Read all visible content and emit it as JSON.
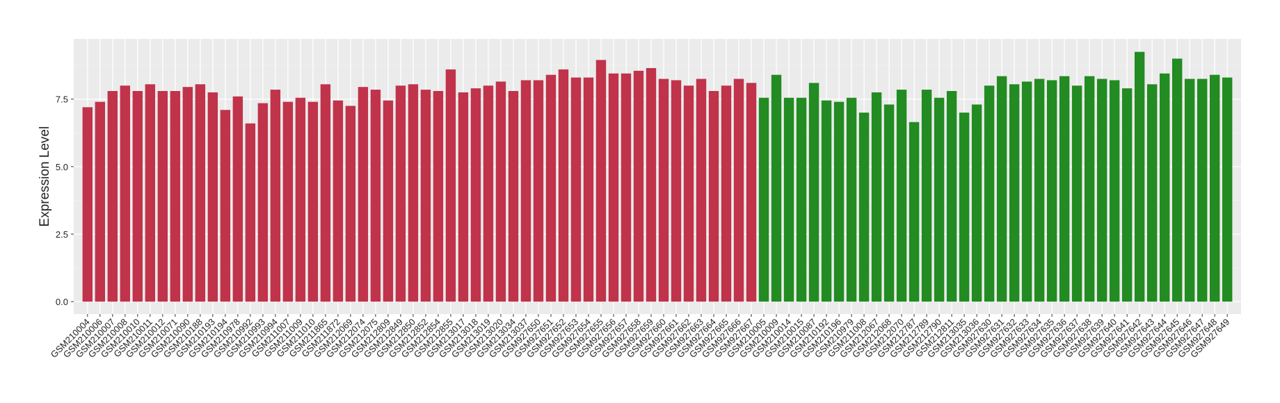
{
  "chart_data": {
    "type": "bar",
    "y_label": "Expression Level",
    "categories": [
      "GSM210004",
      "GSM210006",
      "GSM210007",
      "GSM210008",
      "GSM210010",
      "GSM210011",
      "GSM210012",
      "GSM210071",
      "GSM210090",
      "GSM210188",
      "GSM210193",
      "GSM210194",
      "GSM210978",
      "GSM210992",
      "GSM210993",
      "GSM210994",
      "GSM211007",
      "GSM211009",
      "GSM211010",
      "GSM211865",
      "GSM211872",
      "GSM212069",
      "GSM212074",
      "GSM212075",
      "GSM212809",
      "GSM212849",
      "GSM212850",
      "GSM212852",
      "GSM212854",
      "GSM212855",
      "GSM213017",
      "GSM213018",
      "GSM213019",
      "GSM213020",
      "GSM213034",
      "GSM213037",
      "GSM927650",
      "GSM927651",
      "GSM927652",
      "GSM927653",
      "GSM927654",
      "GSM927655",
      "GSM927656",
      "GSM927657",
      "GSM927658",
      "GSM927659",
      "GSM927660",
      "GSM927661",
      "GSM927662",
      "GSM927663",
      "GSM927664",
      "GSM927665",
      "GSM927666",
      "GSM927667",
      "GSM210005",
      "GSM210009",
      "GSM210014",
      "GSM210015",
      "GSM210087",
      "GSM210192",
      "GSM210196",
      "GSM210979",
      "GSM211008",
      "GSM212067",
      "GSM212068",
      "GSM212070",
      "GSM212787",
      "GSM212789",
      "GSM212790",
      "GSM212811",
      "GSM213035",
      "GSM213036",
      "GSM927630",
      "GSM927631",
      "GSM927632",
      "GSM927633",
      "GSM927634",
      "GSM927635",
      "GSM927636",
      "GSM927637",
      "GSM927638",
      "GSM927639",
      "GSM927640",
      "GSM927641",
      "GSM927642",
      "GSM927643",
      "GSM927644",
      "GSM927645",
      "GSM927646",
      "GSM927647",
      "GSM927648",
      "GSM927649"
    ],
    "values": [
      7.2,
      7.4,
      7.8,
      8.0,
      7.8,
      8.05,
      7.8,
      7.8,
      7.95,
      8.05,
      7.75,
      7.1,
      7.6,
      6.6,
      7.35,
      7.85,
      7.4,
      7.55,
      7.4,
      8.05,
      7.45,
      7.25,
      7.95,
      7.85,
      7.45,
      8.0,
      8.05,
      7.85,
      7.8,
      8.6,
      7.75,
      7.9,
      8.0,
      8.15,
      7.8,
      8.2,
      8.2,
      8.4,
      8.6,
      8.3,
      8.3,
      8.95,
      8.45,
      8.45,
      8.55,
      8.65,
      8.25,
      8.2,
      8.0,
      8.25,
      7.8,
      8.0,
      8.25,
      8.1,
      7.55,
      8.4,
      7.55,
      7.55,
      8.1,
      7.45,
      7.4,
      7.55,
      7.0,
      7.75,
      7.3,
      7.85,
      6.65,
      7.85,
      7.55,
      7.8,
      7.0,
      7.3,
      8.0,
      8.35,
      8.05,
      8.15,
      8.25,
      8.2,
      8.35,
      8.0,
      8.35,
      8.25,
      8.2,
      7.9,
      9.25,
      8.05,
      8.45,
      9.0,
      8.25,
      8.25,
      8.4,
      8.3
    ],
    "colors": [
      "#c0334a",
      "#c0334a",
      "#c0334a",
      "#c0334a",
      "#c0334a",
      "#c0334a",
      "#c0334a",
      "#c0334a",
      "#c0334a",
      "#c0334a",
      "#c0334a",
      "#c0334a",
      "#c0334a",
      "#c0334a",
      "#c0334a",
      "#c0334a",
      "#c0334a",
      "#c0334a",
      "#c0334a",
      "#c0334a",
      "#c0334a",
      "#c0334a",
      "#c0334a",
      "#c0334a",
      "#c0334a",
      "#c0334a",
      "#c0334a",
      "#c0334a",
      "#c0334a",
      "#c0334a",
      "#c0334a",
      "#c0334a",
      "#c0334a",
      "#c0334a",
      "#c0334a",
      "#c0334a",
      "#c0334a",
      "#c0334a",
      "#c0334a",
      "#c0334a",
      "#c0334a",
      "#c0334a",
      "#c0334a",
      "#c0334a",
      "#c0334a",
      "#c0334a",
      "#c0334a",
      "#c0334a",
      "#c0334a",
      "#c0334a",
      "#c0334a",
      "#c0334a",
      "#c0334a",
      "#c0334a",
      "#228b22",
      "#228b22",
      "#228b22",
      "#228b22",
      "#228b22",
      "#228b22",
      "#228b22",
      "#228b22",
      "#228b22",
      "#228b22",
      "#228b22",
      "#228b22",
      "#228b22",
      "#228b22",
      "#228b22",
      "#228b22",
      "#228b22",
      "#228b22",
      "#228b22",
      "#228b22",
      "#228b22",
      "#228b22",
      "#228b22",
      "#228b22",
      "#228b22",
      "#228b22",
      "#228b22",
      "#228b22",
      "#228b22",
      "#228b22",
      "#228b22",
      "#228b22",
      "#228b22",
      "#228b22",
      "#228b22",
      "#228b22",
      "#228b22",
      "#228b22"
    ],
    "ylim": [
      -0.46,
      9.73
    ],
    "yticks": [
      {
        "value": 0,
        "label": "0.0"
      },
      2.5,
      {
        "value": 5,
        "label": "5.0"
      },
      7.5
    ],
    "grid": true
  }
}
